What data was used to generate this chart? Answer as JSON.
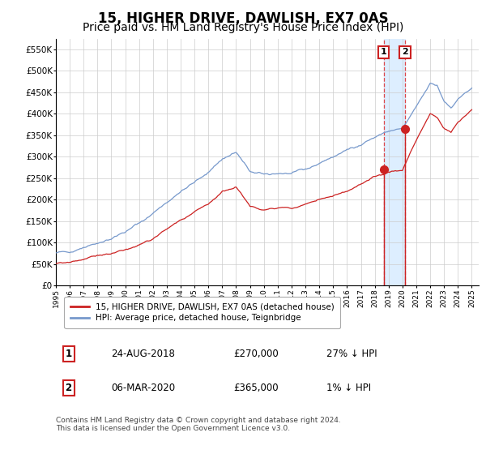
{
  "title": "15, HIGHER DRIVE, DAWLISH, EX7 0AS",
  "subtitle": "Price paid vs. HM Land Registry's House Price Index (HPI)",
  "title_fontsize": 12,
  "subtitle_fontsize": 10,
  "background_color": "#ffffff",
  "plot_bg_color": "#ffffff",
  "grid_color": "#cccccc",
  "hpi_line_color": "#7799cc",
  "price_line_color": "#cc2222",
  "sale1_date": 2018.65,
  "sale1_price": 270000,
  "sale2_date": 2020.18,
  "sale2_price": 365000,
  "highlight_color": "#ddeeff",
  "dashed_line_color": "#dd3333",
  "legend_label1": "15, HIGHER DRIVE, DAWLISH, EX7 0AS (detached house)",
  "legend_label2": "HPI: Average price, detached house, Teignbridge",
  "footer": "Contains HM Land Registry data © Crown copyright and database right 2024.\nThis data is licensed under the Open Government Licence v3.0.",
  "ylim": [
    0,
    575000
  ],
  "xlim_start": 1995.0,
  "xlim_end": 2025.5,
  "yticks": [
    0,
    50000,
    100000,
    150000,
    200000,
    250000,
    300000,
    350000,
    400000,
    450000,
    500000,
    550000
  ],
  "ytick_labels": [
    "£0",
    "£50K",
    "£100K",
    "£150K",
    "£200K",
    "£250K",
    "£300K",
    "£350K",
    "£400K",
    "£450K",
    "£500K",
    "£550K"
  ],
  "xticks": [
    1995,
    1996,
    1997,
    1998,
    1999,
    2000,
    2001,
    2002,
    2003,
    2004,
    2005,
    2006,
    2007,
    2008,
    2009,
    2010,
    2011,
    2012,
    2013,
    2014,
    2015,
    2016,
    2017,
    2018,
    2019,
    2020,
    2021,
    2022,
    2023,
    2024,
    2025
  ],
  "hpi_keypoints_x": [
    1995,
    1996,
    1997,
    1998,
    1999,
    2000,
    2001,
    2002,
    2003,
    2004,
    2005,
    2006,
    2007,
    2008,
    2009,
    2010,
    2011,
    2012,
    2013,
    2014,
    2015,
    2016,
    2017,
    2018,
    2019,
    2020,
    2021,
    2022,
    2022.5,
    2023,
    2023.5,
    2024,
    2025
  ],
  "hpi_keypoints_y": [
    75000,
    80000,
    90000,
    100000,
    110000,
    125000,
    145000,
    168000,
    195000,
    218000,
    240000,
    265000,
    295000,
    310000,
    265000,
    258000,
    262000,
    260000,
    270000,
    285000,
    300000,
    315000,
    330000,
    345000,
    360000,
    365000,
    415000,
    470000,
    465000,
    430000,
    415000,
    435000,
    460000
  ],
  "price_keypoints_x": [
    1995,
    1996,
    1997,
    1998,
    1999,
    2000,
    2001,
    2002,
    2003,
    2004,
    2005,
    2006,
    2007,
    2008,
    2009,
    2010,
    2011,
    2012,
    2013,
    2014,
    2015,
    2016,
    2017,
    2018,
    2019,
    2020,
    2021,
    2022,
    2022.5,
    2023,
    2023.5,
    2024,
    2025
  ],
  "price_keypoints_y": [
    50000,
    55000,
    62000,
    70000,
    75000,
    82000,
    95000,
    110000,
    130000,
    150000,
    170000,
    190000,
    220000,
    230000,
    185000,
    178000,
    183000,
    180000,
    188000,
    200000,
    210000,
    220000,
    235000,
    250000,
    265000,
    270000,
    340000,
    400000,
    390000,
    365000,
    355000,
    380000,
    410000
  ]
}
